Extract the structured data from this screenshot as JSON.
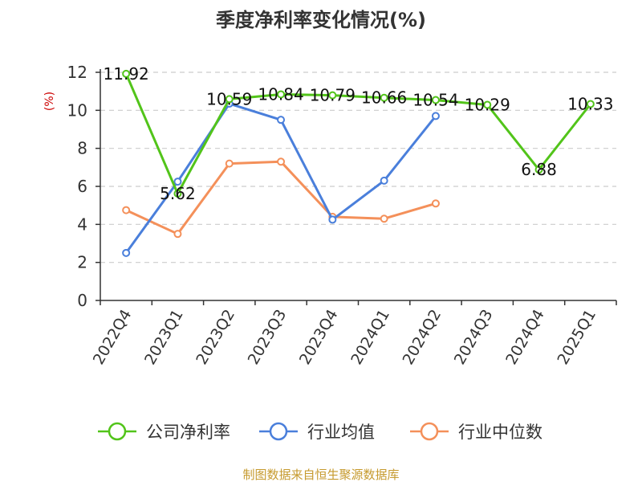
{
  "chart_data": {
    "type": "line",
    "title": "季度净利率变化情况(%)",
    "ylabel": "(%)",
    "categories": [
      "2022Q4",
      "2023Q1",
      "2023Q2",
      "2023Q3",
      "2023Q4",
      "2024Q1",
      "2024Q2",
      "2024Q3",
      "2024Q4",
      "2025Q1"
    ],
    "ylim": [
      0,
      12
    ],
    "yticks": [
      0,
      2,
      4,
      6,
      8,
      10,
      12
    ],
    "grid": true,
    "legend_position": "bottom",
    "series": [
      {
        "name": "公司净利率",
        "color": "#52c41a",
        "values": [
          11.92,
          5.62,
          10.59,
          10.84,
          10.79,
          10.66,
          10.54,
          10.29,
          6.88,
          10.33
        ],
        "labels": [
          "11.92",
          "5.62",
          "10.59",
          "10.84",
          "10.79",
          "10.66",
          "10.54",
          "10.29",
          "6.88",
          "10.33"
        ]
      },
      {
        "name": "行业均值",
        "color": "#4a7fdb",
        "values": [
          2.5,
          6.25,
          10.35,
          9.5,
          4.25,
          6.3,
          9.7,
          null,
          null,
          null
        ]
      },
      {
        "name": "行业中位数",
        "color": "#f4905a",
        "values": [
          4.75,
          3.5,
          7.2,
          7.3,
          4.4,
          4.3,
          5.1,
          null,
          null,
          null
        ]
      }
    ]
  },
  "source_note": "制图数据来自恒生聚源数据库",
  "colors": {
    "source": "#c69a2e",
    "unit": "#cc0000",
    "grid": "#cccccc",
    "axis": "#333333"
  }
}
